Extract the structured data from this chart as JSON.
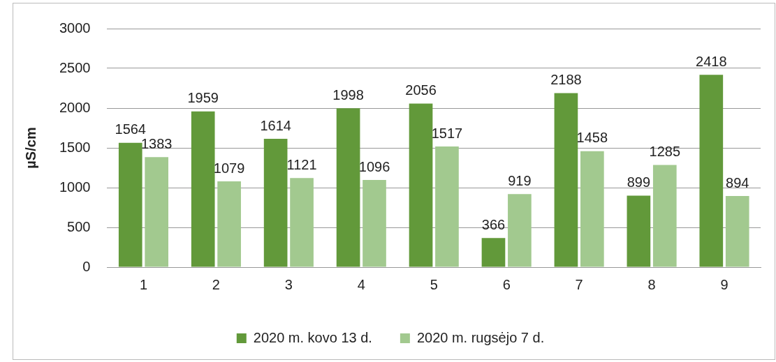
{
  "chart_data": {
    "type": "bar",
    "ylabel": "µS/cm",
    "categories": [
      "1",
      "2",
      "3",
      "4",
      "5",
      "6",
      "7",
      "8",
      "9"
    ],
    "series": [
      {
        "name": "2020 m. kovo 13 d.",
        "color": "#62993a",
        "values": [
          1564,
          1959,
          1614,
          1998,
          2056,
          366,
          2188,
          899,
          2418
        ]
      },
      {
        "name": "2020 m. rugsėjo 7 d.",
        "color": "#a2c98f",
        "values": [
          1383,
          1079,
          1121,
          1096,
          1517,
          919,
          1458,
          1285,
          894
        ]
      }
    ],
    "ylim": [
      0,
      3000
    ],
    "yticks": [
      0,
      500,
      1000,
      1500,
      2000,
      2500,
      3000
    ],
    "grid": "y",
    "legend": "bottom",
    "data_labels": true
  }
}
